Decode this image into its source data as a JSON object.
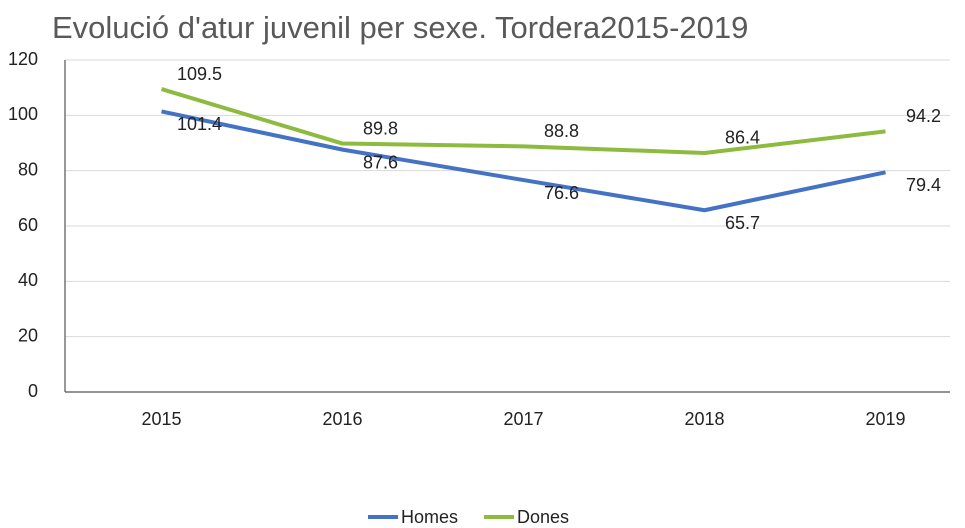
{
  "chart_data": {
    "type": "line",
    "title": "Evolució d'atur juvenil per sexe. Tordera2015-2019",
    "categories": [
      "2015",
      "2016",
      "2017",
      "2018",
      "2019"
    ],
    "series": [
      {
        "name": "Homes",
        "color": "#4472c4",
        "values": [
          101.4,
          87.6,
          76.6,
          65.7,
          79.4
        ]
      },
      {
        "name": "Dones",
        "color": "#8cbb3f",
        "values": [
          109.5,
          89.8,
          88.8,
          86.4,
          94.2
        ]
      }
    ],
    "ylim": [
      0,
      120
    ],
    "yticks": [
      0,
      20,
      40,
      60,
      80,
      100,
      120
    ],
    "grid": true,
    "legend": "bottom"
  }
}
